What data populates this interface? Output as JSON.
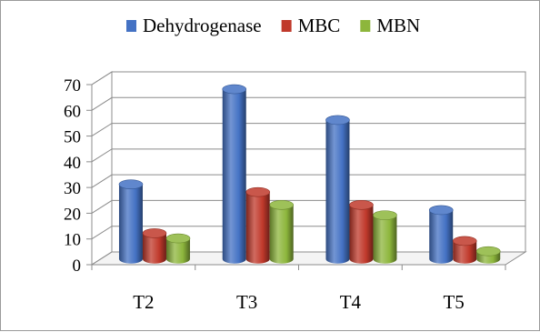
{
  "chart_data": {
    "type": "bar",
    "categories": [
      "T2",
      "T3",
      "T4",
      "T5"
    ],
    "series": [
      {
        "name": "Dehydrogenase",
        "color": "#4472C4",
        "values": [
          29,
          66,
          54,
          19
        ]
      },
      {
        "name": "MBC",
        "color": "#C0392B",
        "values": [
          10,
          26,
          21,
          7
        ]
      },
      {
        "name": "MBN",
        "color": "#8DB63C",
        "values": [
          8,
          21,
          17,
          3
        ]
      }
    ],
    "yticks": [
      0,
      10,
      20,
      30,
      40,
      50,
      60,
      70
    ],
    "ylim": [
      0,
      70
    ],
    "grid": true,
    "legend_position": "top",
    "style": "3d-cylinder-bars"
  }
}
